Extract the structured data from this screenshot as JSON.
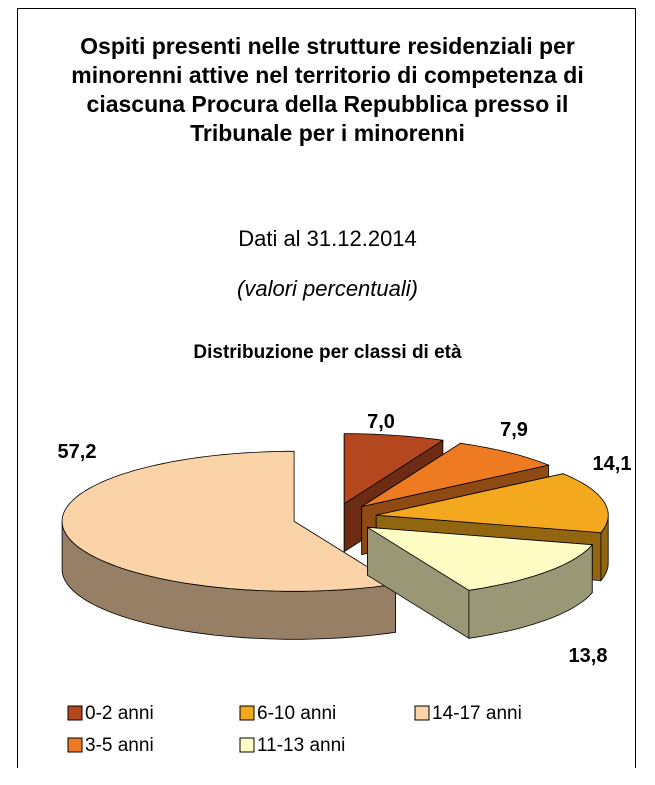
{
  "chart_data": {
    "type": "pie3d",
    "title": "Ospiti presenti nelle strutture residenziali per minorenni attive nel territorio di competenza di ciascuna Procura della Repubblica presso il Tribunale per i minorenni",
    "subtitle": "Dati al 31.12.2014",
    "note": "(valori percentuali)",
    "chart_title": "Distribuzione per classi di età",
    "categories": [
      "0-2 anni",
      "3-5 anni",
      "6-10 anni",
      "11-13 anni",
      "14-17 anni"
    ],
    "values": [
      7.0,
      7.9,
      14.1,
      13.8,
      57.2
    ],
    "value_labels": [
      "7,0",
      "7,9",
      "14,1",
      "13,8",
      "57,2"
    ],
    "colors": [
      "#B5471F",
      "#EE7B22",
      "#F4A81D",
      "#FFFCC4",
      "#FAD3A8"
    ],
    "legend": "bottom"
  }
}
